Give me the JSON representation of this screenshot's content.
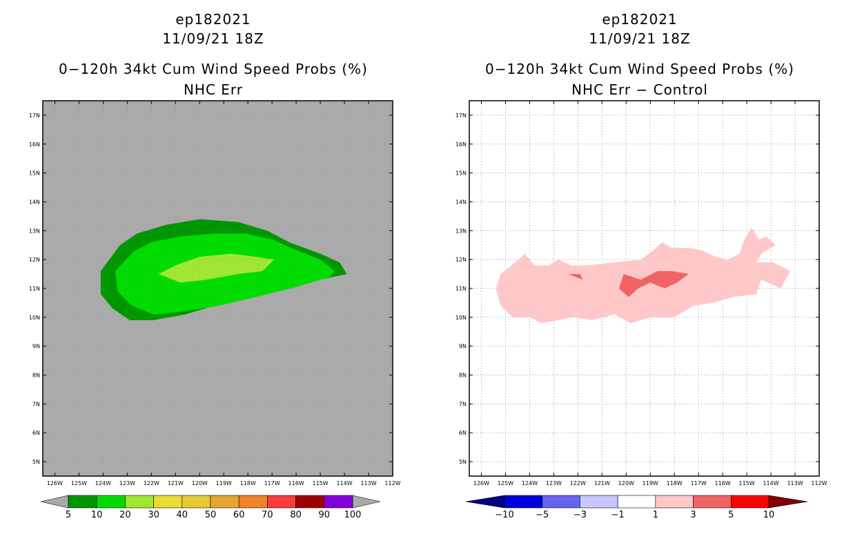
{
  "left_panel": {
    "storm_id": "ep182021",
    "datetime": "11/09/21 18Z",
    "title": "0−120h 34kt Cum Wind Speed Probs (%)",
    "subtitle": "NHC Err",
    "background_color": "#aaaaaa",
    "colorbar_labels": [
      "5",
      "10",
      "20",
      "30",
      "40",
      "50",
      "60",
      "70",
      "80",
      "90",
      "100"
    ],
    "colorbar_colors": [
      "#009600",
      "#00dc00",
      "#a0e632",
      "#e6dc32",
      "#e6c832",
      "#e6a532",
      "#f08228",
      "#fa3c3c",
      "#a00000",
      "#8200dc"
    ],
    "colorbar_end_colors": [
      "#aaaaaa",
      "#aaaaaa"
    ],
    "contour_levels_shown": [
      "5-10",
      "10-20",
      "20-30"
    ]
  },
  "right_panel": {
    "storm_id": "ep182021",
    "datetime": "11/09/21 18Z",
    "title": "0−120h 34kt Cum Wind Speed Probs (%)",
    "subtitle": "NHC Err − Control",
    "background_color": "#ffffff",
    "colorbar_labels": [
      "−10",
      "−5",
      "−3",
      "−1",
      "1",
      "3",
      "5",
      "10"
    ],
    "colorbar_colors": [
      "#0000dc",
      "#6464f0",
      "#c8c8ff",
      "#ffffff",
      "#ffc8c8",
      "#f06464",
      "#ff0000"
    ],
    "colorbar_end_colors": [
      "#000082",
      "#820000"
    ],
    "contour_levels_shown": [
      "1-3",
      "3-5"
    ]
  },
  "axes": {
    "lat_labels": [
      "17N",
      "16N",
      "15N",
      "14N",
      "13N",
      "12N",
      "11N",
      "10N",
      "9N",
      "8N",
      "7N",
      "6N",
      "5N"
    ],
    "lon_labels": [
      "126W",
      "125W",
      "124W",
      "123W",
      "122W",
      "121W",
      "120W",
      "119W",
      "118W",
      "117W",
      "116W",
      "115W",
      "114W",
      "113W",
      "112W"
    ]
  },
  "chart_data": [
    {
      "type": "heatmap",
      "title": "0-120h 34kt Cum Wind Speed Probs (%) - NHC Err",
      "x_range_deg_west": [
        126.5,
        112
      ],
      "y_range_deg_north": [
        4.5,
        17.5
      ],
      "shapes": [
        {
          "level": "5-10",
          "color": "#009600",
          "lonlat": [
            [
              -123.3,
              12.5
            ],
            [
              -122.6,
              12.9
            ],
            [
              -121.4,
              13.2
            ],
            [
              -120.0,
              13.4
            ],
            [
              -118.4,
              13.3
            ],
            [
              -117.2,
              13.0
            ],
            [
              -116.3,
              12.6
            ],
            [
              -115.0,
              12.2
            ],
            [
              -114.2,
              11.9
            ],
            [
              -113.9,
              11.5
            ],
            [
              -115.6,
              11.2
            ],
            [
              -117.3,
              10.9
            ],
            [
              -119.0,
              10.5
            ],
            [
              -120.6,
              10.1
            ],
            [
              -121.9,
              9.9
            ],
            [
              -122.9,
              9.9
            ],
            [
              -123.6,
              10.3
            ],
            [
              -124.1,
              10.8
            ],
            [
              -124.1,
              11.6
            ]
          ]
        },
        {
          "level": "10-20",
          "color": "#00dc00",
          "lonlat": [
            [
              -122.7,
              12.3
            ],
            [
              -122.0,
              12.6
            ],
            [
              -120.8,
              12.8
            ],
            [
              -119.4,
              12.9
            ],
            [
              -118.1,
              12.9
            ],
            [
              -117.0,
              12.7
            ],
            [
              -116.2,
              12.4
            ],
            [
              -115.0,
              12.0
            ],
            [
              -114.4,
              11.6
            ],
            [
              -114.6,
              11.4
            ],
            [
              -116.2,
              11.0
            ],
            [
              -117.7,
              10.7
            ],
            [
              -119.2,
              10.4
            ],
            [
              -120.7,
              10.2
            ],
            [
              -121.9,
              10.1
            ],
            [
              -122.8,
              10.4
            ],
            [
              -123.4,
              10.9
            ],
            [
              -123.5,
              11.6
            ]
          ]
        },
        {
          "level": "20-30",
          "color": "#a0e632",
          "lonlat": [
            [
              -121.0,
              11.8
            ],
            [
              -120.0,
              12.1
            ],
            [
              -118.7,
              12.2
            ],
            [
              -117.7,
              12.1
            ],
            [
              -116.9,
              12.0
            ],
            [
              -117.4,
              11.6
            ],
            [
              -118.4,
              11.5
            ],
            [
              -119.7,
              11.3
            ],
            [
              -120.8,
              11.2
            ],
            [
              -121.7,
              11.5
            ]
          ]
        }
      ]
    },
    {
      "type": "heatmap",
      "title": "0-120h 34kt Cum Wind Speed Probs (%) - NHC Err - Control",
      "x_range_deg_west": [
        126.5,
        112
      ],
      "y_range_deg_north": [
        4.5,
        17.5
      ],
      "shapes": [
        {
          "level": "1-3",
          "color": "#ffc8c8",
          "lonlat": [
            [
              -125.2,
              11.5
            ],
            [
              -124.6,
              11.9
            ],
            [
              -124.2,
              12.2
            ],
            [
              -123.8,
              11.8
            ],
            [
              -123.2,
              11.8
            ],
            [
              -122.8,
              12.0
            ],
            [
              -122.3,
              11.8
            ],
            [
              -121.6,
              11.8
            ],
            [
              -120.5,
              11.9
            ],
            [
              -119.4,
              12.0
            ],
            [
              -118.9,
              12.3
            ],
            [
              -118.5,
              12.6
            ],
            [
              -118.1,
              12.4
            ],
            [
              -117.3,
              12.4
            ],
            [
              -116.8,
              12.3
            ],
            [
              -116.3,
              12.1
            ],
            [
              -115.8,
              12.0
            ],
            [
              -115.3,
              12.2
            ],
            [
              -115.1,
              12.7
            ],
            [
              -114.8,
              13.1
            ],
            [
              -114.5,
              12.7
            ],
            [
              -114.2,
              12.8
            ],
            [
              -113.8,
              12.5
            ],
            [
              -114.4,
              12.2
            ],
            [
              -114.6,
              11.9
            ],
            [
              -113.9,
              11.9
            ],
            [
              -113.2,
              11.6
            ],
            [
              -113.6,
              11.0
            ],
            [
              -114.4,
              11.3
            ],
            [
              -114.6,
              10.8
            ],
            [
              -115.6,
              10.7
            ],
            [
              -116.4,
              10.5
            ],
            [
              -117.2,
              10.4
            ],
            [
              -118.0,
              10.0
            ],
            [
              -119.0,
              10.0
            ],
            [
              -119.8,
              9.8
            ],
            [
              -120.5,
              10.1
            ],
            [
              -121.4,
              9.9
            ],
            [
              -122.2,
              10.0
            ],
            [
              -122.8,
              9.9
            ],
            [
              -123.5,
              9.8
            ],
            [
              -124.0,
              10.0
            ],
            [
              -124.7,
              10.0
            ],
            [
              -125.2,
              10.4
            ],
            [
              -125.4,
              11.0
            ]
          ]
        },
        {
          "level": "3-5",
          "color": "#f06464",
          "lonlat": [
            [
              -120.1,
              11.5
            ],
            [
              -119.4,
              11.3
            ],
            [
              -118.7,
              11.6
            ],
            [
              -118.1,
              11.6
            ],
            [
              -117.4,
              11.5
            ],
            [
              -117.9,
              11.2
            ],
            [
              -118.4,
              11.0
            ],
            [
              -119.0,
              11.2
            ],
            [
              -119.5,
              11.0
            ],
            [
              -119.9,
              10.7
            ],
            [
              -120.3,
              11.0
            ]
          ]
        },
        {
          "level": "3-5",
          "color": "#f06464",
          "lonlat": [
            [
              -122.4,
              11.5
            ],
            [
              -121.9,
              11.5
            ],
            [
              -121.8,
              11.3
            ],
            [
              -122.1,
              11.4
            ]
          ]
        }
      ]
    }
  ]
}
